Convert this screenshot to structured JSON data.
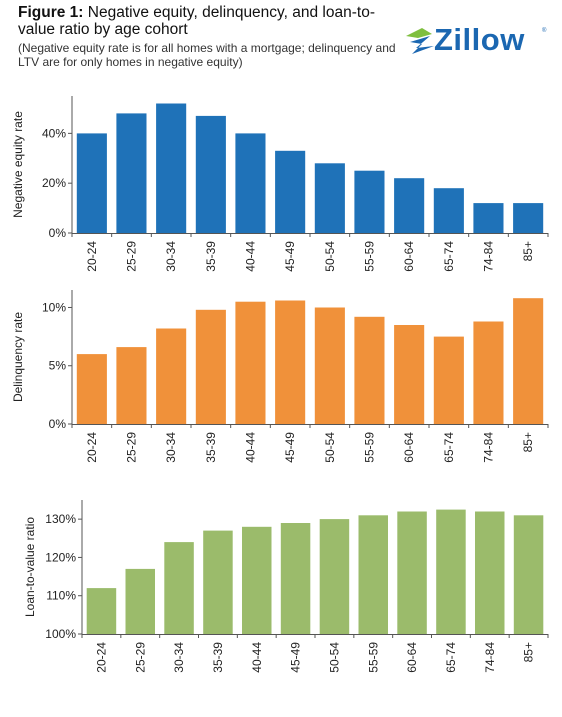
{
  "header": {
    "figure_label": "Figure 1:",
    "title": "Negative equity, delinquency, and loan-to-value ratio by age cohort",
    "subtitle": "(Negative equity rate is for all homes with a mortgage; delinquency and LTV are for only homes in negative equity)"
  },
  "logo": {
    "text": "Zillow",
    "reg": "®",
    "color": "#1b67b1",
    "accent": "#7fbf3f"
  },
  "chart_data": [
    {
      "type": "bar",
      "categories": [
        "20-24",
        "25-29",
        "30-34",
        "35-39",
        "40-44",
        "45-49",
        "50-54",
        "55-59",
        "60-64",
        "65-74",
        "74-84",
        "85+"
      ],
      "values": [
        40,
        48,
        52,
        47,
        40,
        33,
        28,
        25,
        22,
        18,
        12,
        12
      ],
      "ylabel": "Negative equity rate",
      "ylim": [
        0,
        55
      ],
      "yticks": [
        0,
        20,
        40
      ],
      "ytick_labels": [
        "0%",
        "20%",
        "40%"
      ],
      "color": "#1f72b8",
      "grid": false
    },
    {
      "type": "bar",
      "categories": [
        "20-24",
        "25-29",
        "30-34",
        "35-39",
        "40-44",
        "45-49",
        "50-54",
        "55-59",
        "60-64",
        "65-74",
        "74-84",
        "85+"
      ],
      "values": [
        6.0,
        6.6,
        8.2,
        9.8,
        10.5,
        10.6,
        10.0,
        9.2,
        8.5,
        7.5,
        8.8,
        10.8
      ],
      "ylabel": "Delinquency rate",
      "ylim": [
        0,
        11.5
      ],
      "yticks": [
        0,
        5,
        10
      ],
      "ytick_labels": [
        "0%",
        "5%",
        "10%"
      ],
      "color": "#f0913a",
      "grid": false
    },
    {
      "type": "bar",
      "categories": [
        "20-24",
        "25-29",
        "30-34",
        "35-39",
        "40-44",
        "45-49",
        "50-54",
        "55-59",
        "60-64",
        "65-74",
        "74-84",
        "85+"
      ],
      "values": [
        112,
        117,
        124,
        127,
        128,
        129,
        130,
        131,
        132,
        132.5,
        132,
        131
      ],
      "ylabel": "Loan-to-value ratio",
      "ylim": [
        100,
        135
      ],
      "yticks": [
        100,
        110,
        120,
        130
      ],
      "ytick_labels": [
        "100%",
        "110%",
        "120%",
        "130%"
      ],
      "color": "#9bbb6b",
      "grid": false
    }
  ]
}
